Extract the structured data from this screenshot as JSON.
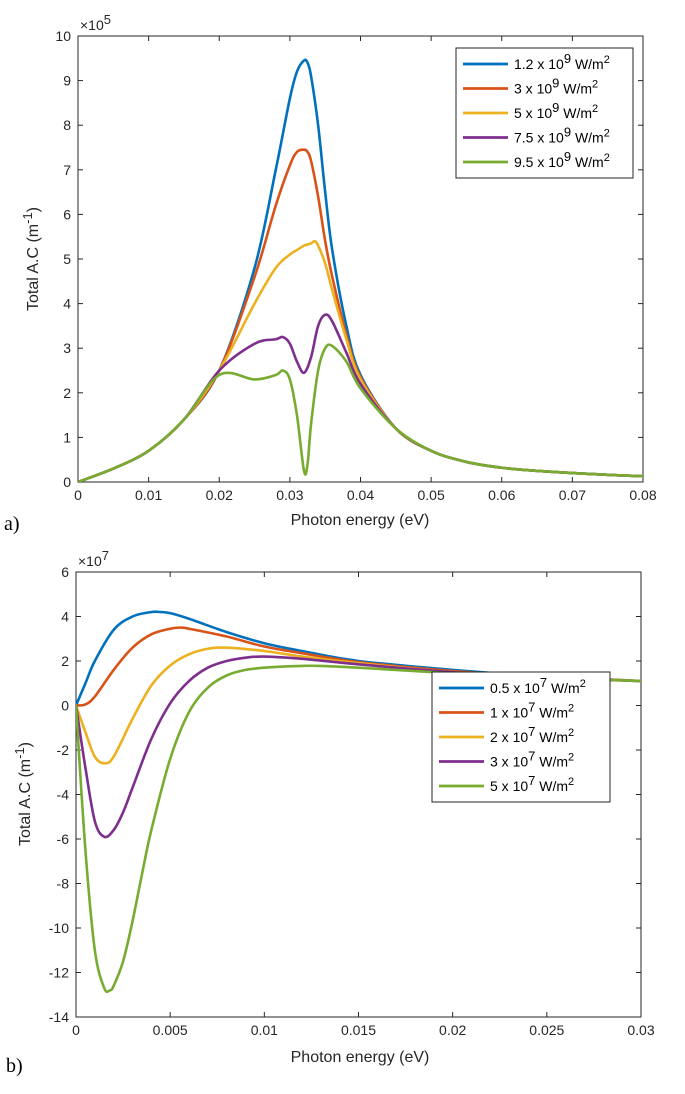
{
  "chart_data": [
    {
      "type": "line",
      "panel_label": "a)",
      "xlabel": "Photon energy (eV)",
      "ylabel": "Total A.C (m",
      "ylabel_sup": "-1",
      "ylabel_close": ")",
      "xlim": [
        0,
        0.08
      ],
      "ylim": [
        0,
        10
      ],
      "y_multiplier": "×10",
      "y_multiplier_exp": "5",
      "xticks": [
        0,
        0.01,
        0.02,
        0.03,
        0.04,
        0.05,
        0.06,
        0.07,
        0.08
      ],
      "xtick_labels": [
        "0",
        "0.01",
        "0.02",
        "0.03",
        "0.04",
        "0.05",
        "0.06",
        "0.07",
        "0.08"
      ],
      "yticks": [
        0,
        1,
        2,
        3,
        4,
        5,
        6,
        7,
        8,
        9,
        10
      ],
      "ytick_labels": [
        "0",
        "1",
        "2",
        "3",
        "4",
        "5",
        "6",
        "7",
        "8",
        "9",
        "10"
      ],
      "legend_position": "top-right",
      "series": [
        {
          "name": "1.2 x 10",
          "exp": "9",
          "unit": " W/m",
          "unit_exp": "2",
          "color": "#0072BD",
          "x": [
            0,
            0.005,
            0.01,
            0.015,
            0.02,
            0.025,
            0.028,
            0.03,
            0.031,
            0.032,
            0.0325,
            0.033,
            0.034,
            0.035,
            0.036,
            0.038,
            0.04,
            0.045,
            0.05,
            0.055,
            0.06,
            0.065,
            0.07,
            0.075,
            0.08
          ],
          "y": [
            0,
            0.3,
            0.7,
            1.4,
            2.5,
            4.8,
            7.0,
            8.6,
            9.2,
            9.45,
            9.4,
            9.1,
            8.0,
            6.5,
            5.2,
            3.5,
            2.4,
            1.2,
            0.7,
            0.45,
            0.32,
            0.25,
            0.2,
            0.16,
            0.13
          ]
        },
        {
          "name": "3 x 10",
          "exp": "9",
          "unit": " W/m",
          "unit_exp": "2",
          "color": "#D95319",
          "x": [
            0,
            0.005,
            0.01,
            0.015,
            0.02,
            0.025,
            0.028,
            0.03,
            0.031,
            0.032,
            0.0325,
            0.033,
            0.034,
            0.035,
            0.036,
            0.038,
            0.04,
            0.045,
            0.05,
            0.055,
            0.06,
            0.065,
            0.07,
            0.075,
            0.08
          ],
          "y": [
            0,
            0.3,
            0.7,
            1.4,
            2.5,
            4.6,
            6.2,
            7.1,
            7.4,
            7.45,
            7.4,
            7.2,
            6.4,
            5.4,
            4.6,
            3.3,
            2.35,
            1.2,
            0.7,
            0.45,
            0.32,
            0.25,
            0.2,
            0.16,
            0.13
          ]
        },
        {
          "name": "5 x 10",
          "exp": "9",
          "unit": " W/m",
          "unit_exp": "2",
          "color": "#EDB120",
          "x": [
            0,
            0.005,
            0.01,
            0.015,
            0.02,
            0.025,
            0.028,
            0.03,
            0.031,
            0.032,
            0.033,
            0.0335,
            0.034,
            0.035,
            0.036,
            0.038,
            0.04,
            0.045,
            0.05,
            0.055,
            0.06,
            0.065,
            0.07,
            0.075,
            0.08
          ],
          "y": [
            0,
            0.3,
            0.7,
            1.4,
            2.5,
            4.0,
            4.8,
            5.1,
            5.2,
            5.3,
            5.35,
            5.4,
            5.3,
            4.9,
            4.3,
            3.2,
            2.3,
            1.2,
            0.7,
            0.45,
            0.32,
            0.25,
            0.2,
            0.16,
            0.13
          ]
        },
        {
          "name": "7.5 x 10",
          "exp": "9",
          "unit": " W/m",
          "unit_exp": "2",
          "color": "#7E2F8E",
          "x": [
            0,
            0.005,
            0.01,
            0.015,
            0.02,
            0.025,
            0.028,
            0.029,
            0.03,
            0.031,
            0.032,
            0.033,
            0.034,
            0.035,
            0.036,
            0.038,
            0.04,
            0.045,
            0.05,
            0.055,
            0.06,
            0.065,
            0.07,
            0.075,
            0.08
          ],
          "y": [
            0,
            0.3,
            0.7,
            1.4,
            2.5,
            3.1,
            3.2,
            3.25,
            3.1,
            2.7,
            2.45,
            2.8,
            3.5,
            3.75,
            3.6,
            2.9,
            2.2,
            1.2,
            0.7,
            0.45,
            0.32,
            0.25,
            0.2,
            0.16,
            0.13
          ]
        },
        {
          "name": "9.5 x 10",
          "exp": "9",
          "unit": " W/m",
          "unit_exp": "2",
          "color": "#77AC30",
          "x": [
            0,
            0.005,
            0.01,
            0.015,
            0.02,
            0.025,
            0.028,
            0.029,
            0.03,
            0.031,
            0.032,
            0.0325,
            0.033,
            0.034,
            0.035,
            0.036,
            0.038,
            0.04,
            0.045,
            0.05,
            0.055,
            0.06,
            0.065,
            0.07,
            0.075,
            0.08
          ],
          "y": [
            0,
            0.3,
            0.7,
            1.4,
            2.4,
            2.3,
            2.4,
            2.5,
            2.3,
            1.5,
            0.25,
            0.4,
            1.3,
            2.5,
            3.0,
            3.05,
            2.7,
            2.1,
            1.2,
            0.7,
            0.45,
            0.32,
            0.25,
            0.2,
            0.16,
            0.13
          ]
        }
      ]
    },
    {
      "type": "line",
      "panel_label": "b)",
      "xlabel": "Photon energy (eV)",
      "ylabel": "Total A.C (m",
      "ylabel_sup": "-1",
      "ylabel_close": ")",
      "xlim": [
        0,
        0.03
      ],
      "ylim": [
        -14,
        6
      ],
      "y_multiplier": "×10",
      "y_multiplier_exp": "7",
      "xticks": [
        0,
        0.005,
        0.01,
        0.015,
        0.02,
        0.025,
        0.03
      ],
      "xtick_labels": [
        "0",
        "0.005",
        "0.01",
        "0.015",
        "0.02",
        "0.025",
        "0.03"
      ],
      "yticks": [
        -14,
        -12,
        -10,
        -8,
        -6,
        -4,
        -2,
        0,
        2,
        4,
        6
      ],
      "ytick_labels": [
        "-14",
        "-12",
        "-10",
        "-8",
        "-6",
        "-4",
        "-2",
        "0",
        "2",
        "4",
        "6"
      ],
      "legend_position": "center-right",
      "series": [
        {
          "name": "0.5 x 10",
          "exp": "7",
          "unit": " W/m",
          "unit_exp": "2",
          "color": "#0072BD",
          "x": [
            0,
            0.0005,
            0.001,
            0.002,
            0.003,
            0.004,
            0.0045,
            0.005,
            0.006,
            0.008,
            0.01,
            0.012,
            0.015,
            0.02,
            0.025,
            0.03
          ],
          "y": [
            0,
            1.0,
            2.0,
            3.4,
            4.0,
            4.2,
            4.2,
            4.15,
            3.9,
            3.3,
            2.8,
            2.45,
            2.0,
            1.6,
            1.3,
            1.1
          ]
        },
        {
          "name": "1 x 10",
          "exp": "7",
          "unit": " W/m",
          "unit_exp": "2",
          "color": "#D95319",
          "x": [
            0,
            0.0005,
            0.001,
            0.002,
            0.003,
            0.004,
            0.005,
            0.0055,
            0.006,
            0.008,
            0.01,
            0.012,
            0.015,
            0.02,
            0.025,
            0.03
          ],
          "y": [
            0,
            0.05,
            0.4,
            1.6,
            2.6,
            3.2,
            3.45,
            3.5,
            3.45,
            3.1,
            2.65,
            2.35,
            1.95,
            1.55,
            1.3,
            1.1
          ]
        },
        {
          "name": "2 x 10",
          "exp": "7",
          "unit": " W/m",
          "unit_exp": "2",
          "color": "#EDB120",
          "x": [
            0,
            0.0005,
            0.001,
            0.0015,
            0.002,
            0.003,
            0.004,
            0.005,
            0.006,
            0.007,
            0.008,
            0.01,
            0.012,
            0.015,
            0.02,
            0.025,
            0.03
          ],
          "y": [
            0,
            -1.2,
            -2.3,
            -2.6,
            -2.3,
            -0.6,
            0.9,
            1.8,
            2.3,
            2.55,
            2.6,
            2.45,
            2.2,
            1.9,
            1.5,
            1.25,
            1.1
          ]
        },
        {
          "name": "3 x 10",
          "exp": "7",
          "unit": " W/m",
          "unit_exp": "2",
          "color": "#7E2F8E",
          "x": [
            0,
            0.0005,
            0.001,
            0.0015,
            0.002,
            0.0025,
            0.003,
            0.004,
            0.005,
            0.006,
            0.007,
            0.008,
            0.009,
            0.01,
            0.012,
            0.015,
            0.02,
            0.025,
            0.03
          ],
          "y": [
            0,
            -2.8,
            -5.2,
            -5.9,
            -5.6,
            -4.8,
            -3.7,
            -1.5,
            0.1,
            1.1,
            1.7,
            2.0,
            2.15,
            2.2,
            2.1,
            1.85,
            1.5,
            1.25,
            1.1
          ]
        },
        {
          "name": "5 x 10",
          "exp": "7",
          "unit": " W/m",
          "unit_exp": "2",
          "color": "#77AC30",
          "x": [
            0,
            0.0005,
            0.001,
            0.0015,
            0.0018,
            0.002,
            0.0025,
            0.003,
            0.0035,
            0.004,
            0.005,
            0.006,
            0.007,
            0.008,
            0.009,
            0.01,
            0.011,
            0.012,
            0.013,
            0.015,
            0.02,
            0.025,
            0.03
          ],
          "y": [
            0,
            -6.5,
            -11.0,
            -12.7,
            -12.8,
            -12.6,
            -11.5,
            -9.7,
            -7.6,
            -5.6,
            -2.4,
            -0.3,
            0.8,
            1.35,
            1.6,
            1.7,
            1.75,
            1.78,
            1.78,
            1.7,
            1.45,
            1.25,
            1.1
          ]
        }
      ]
    }
  ]
}
